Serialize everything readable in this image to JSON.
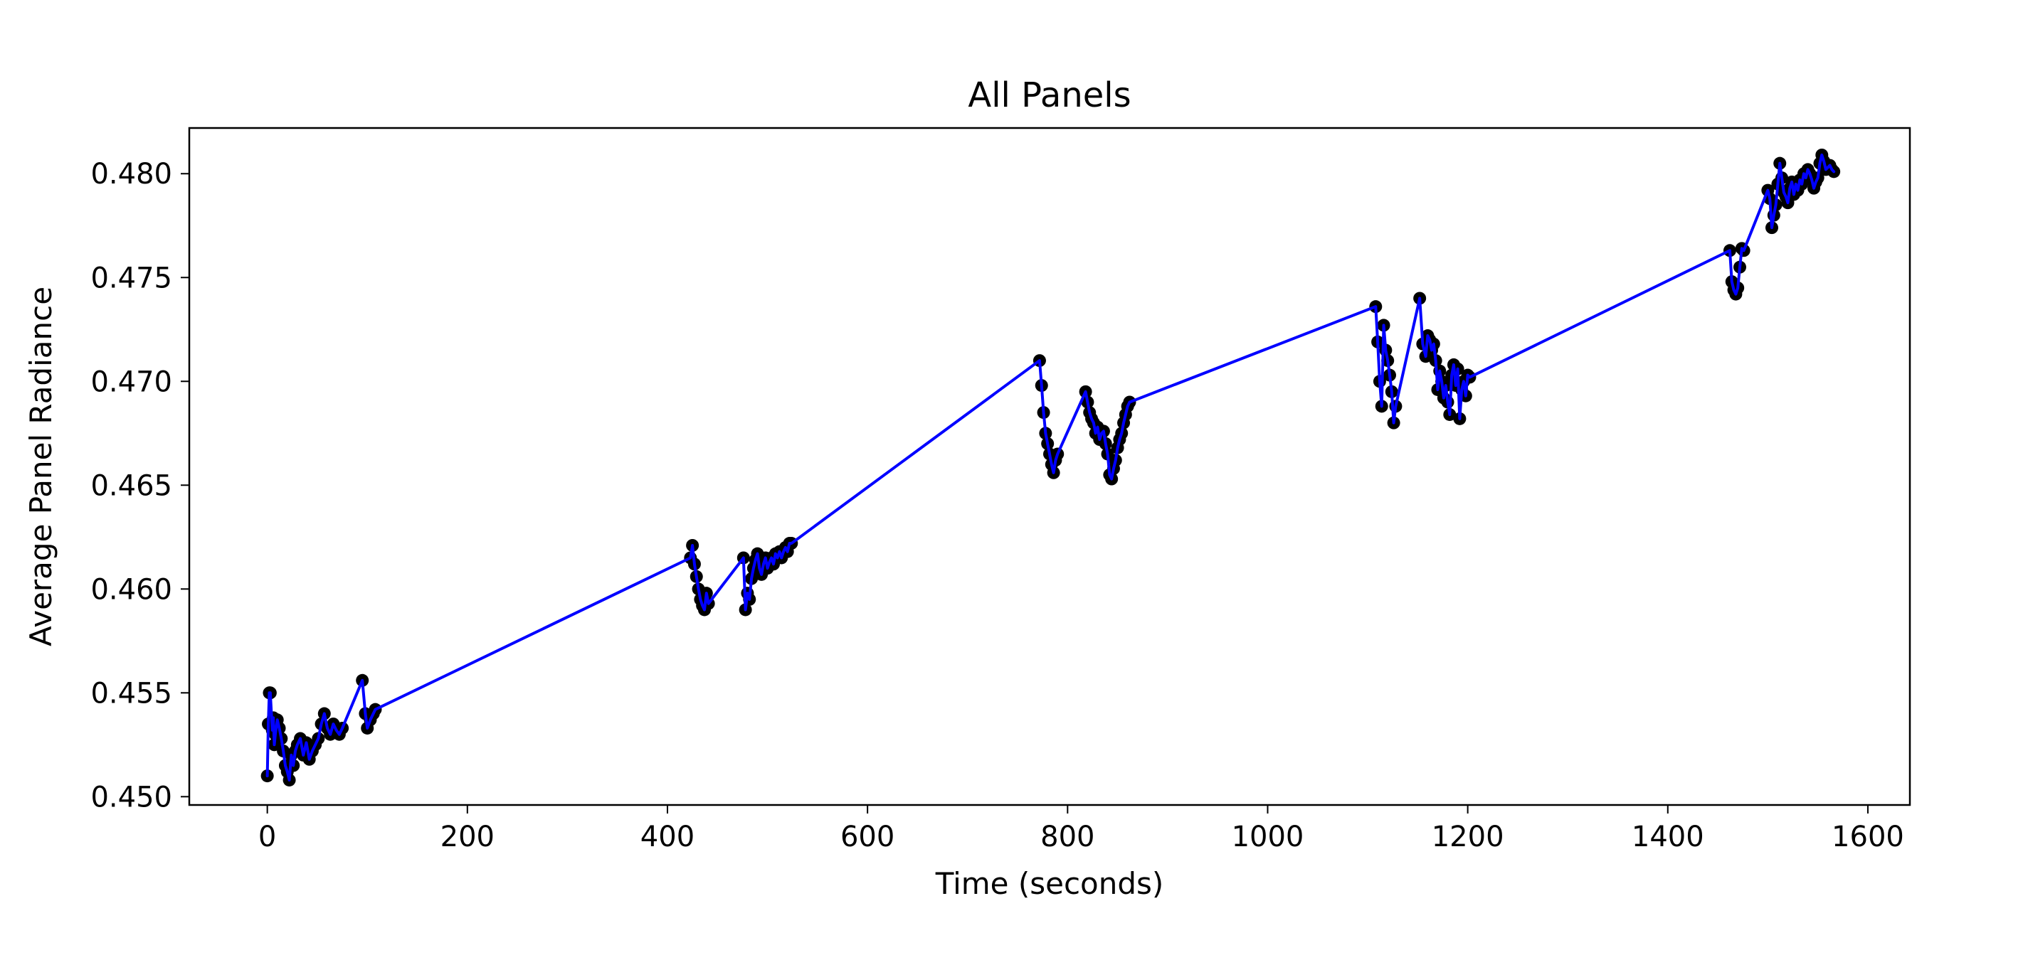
{
  "chart_data": {
    "type": "line",
    "title": "All Panels",
    "xlabel": "Time (seconds)",
    "ylabel": "Average Panel Radiance",
    "xlim": [
      -78,
      1642
    ],
    "ylim": [
      0.4496,
      0.4822
    ],
    "xticks": [
      0,
      200,
      400,
      600,
      800,
      1000,
      1200,
      1400,
      1600
    ],
    "xtick_labels": [
      "0",
      "200",
      "400",
      "600",
      "800",
      "1000",
      "1200",
      "1400",
      "1600"
    ],
    "yticks": [
      0.45,
      0.455,
      0.46,
      0.465,
      0.47,
      0.475,
      0.48
    ],
    "ytick_labels": [
      "0.450",
      "0.455",
      "0.460",
      "0.465",
      "0.470",
      "0.475",
      "0.480"
    ],
    "grid": false,
    "line_color": "#0000ff",
    "marker_color": "#000000",
    "series": [
      {
        "x": [
          0,
          1,
          2,
          3,
          5,
          6,
          7,
          8,
          10,
          12,
          14,
          16,
          18,
          20,
          22,
          24,
          26,
          28,
          30,
          33,
          36,
          39,
          42,
          45,
          48,
          51,
          54,
          57,
          60,
          63,
          66,
          69,
          72,
          75,
          95,
          98,
          100,
          103,
          106,
          108,
          423,
          425,
          427,
          429,
          431,
          433,
          435,
          437,
          439,
          441,
          476,
          478,
          480,
          482,
          484,
          486,
          488,
          490,
          492,
          494,
          496,
          498,
          500,
          502,
          504,
          506,
          508,
          510,
          512,
          514,
          516,
          518,
          520,
          522,
          524,
          772,
          774,
          776,
          778,
          780,
          782,
          784,
          786,
          788,
          790,
          818,
          820,
          822,
          824,
          826,
          828,
          830,
          832,
          834,
          836,
          838,
          840,
          842,
          844,
          846,
          848,
          850,
          852,
          854,
          856,
          858,
          860,
          862,
          1108,
          1110,
          1112,
          1114,
          1116,
          1118,
          1120,
          1122,
          1124,
          1126,
          1128,
          1152,
          1155,
          1158,
          1160,
          1162,
          1164,
          1166,
          1168,
          1170,
          1172,
          1174,
          1176,
          1178,
          1180,
          1182,
          1184,
          1186,
          1188,
          1190,
          1192,
          1194,
          1196,
          1198,
          1200,
          1202,
          1462,
          1464,
          1466,
          1468,
          1470,
          1472,
          1474,
          1476,
          1500,
          1502,
          1504,
          1506,
          1508,
          1510,
          1512,
          1514,
          1516,
          1518,
          1520,
          1522,
          1524,
          1526,
          1528,
          1530,
          1532,
          1534,
          1536,
          1538,
          1540,
          1542,
          1544,
          1546,
          1548,
          1550,
          1552,
          1554,
          1556,
          1558,
          1560,
          1562,
          1564,
          1566
        ],
        "y": [
          0.451,
          0.4535,
          0.455,
          0.455,
          0.4532,
          0.4538,
          0.4525,
          0.453,
          0.4537,
          0.4533,
          0.4528,
          0.4522,
          0.4515,
          0.4512,
          0.4508,
          0.452,
          0.4515,
          0.4522,
          0.4525,
          0.4528,
          0.452,
          0.4526,
          0.4518,
          0.4522,
          0.4525,
          0.4528,
          0.4535,
          0.454,
          0.4533,
          0.453,
          0.4535,
          0.4532,
          0.453,
          0.4533,
          0.4556,
          0.454,
          0.4533,
          0.4537,
          0.454,
          0.4542,
          0.4615,
          0.4621,
          0.4612,
          0.4606,
          0.46,
          0.4595,
          0.4592,
          0.459,
          0.4598,
          0.4593,
          0.4615,
          0.459,
          0.4598,
          0.4595,
          0.4605,
          0.461,
          0.4614,
          0.4617,
          0.461,
          0.4607,
          0.4612,
          0.4615,
          0.461,
          0.4613,
          0.4615,
          0.4612,
          0.4617,
          0.4615,
          0.4618,
          0.4615,
          0.4618,
          0.462,
          0.4618,
          0.4622,
          0.4622,
          0.471,
          0.4698,
          0.4685,
          0.4675,
          0.467,
          0.4665,
          0.466,
          0.4656,
          0.4662,
          0.4665,
          0.4695,
          0.469,
          0.4685,
          0.4682,
          0.468,
          0.4675,
          0.4678,
          0.4672,
          0.4675,
          0.4676,
          0.467,
          0.4665,
          0.4655,
          0.4653,
          0.4658,
          0.4662,
          0.4668,
          0.4672,
          0.4675,
          0.468,
          0.4684,
          0.4688,
          0.469,
          0.4736,
          0.4719,
          0.47,
          0.4688,
          0.4727,
          0.4715,
          0.471,
          0.4703,
          0.4695,
          0.468,
          0.4688,
          0.474,
          0.4718,
          0.4712,
          0.4722,
          0.472,
          0.4715,
          0.4718,
          0.471,
          0.4696,
          0.4705,
          0.47,
          0.4692,
          0.4698,
          0.469,
          0.4684,
          0.4703,
          0.4708,
          0.4698,
          0.4706,
          0.4682,
          0.4696,
          0.47,
          0.4693,
          0.4703,
          0.4702,
          0.4763,
          0.4748,
          0.4744,
          0.4742,
          0.4745,
          0.4755,
          0.4764,
          0.4763,
          0.4792,
          0.4788,
          0.4774,
          0.478,
          0.4785,
          0.4795,
          0.4805,
          0.4798,
          0.4791,
          0.4789,
          0.4786,
          0.4793,
          0.4796,
          0.479,
          0.4795,
          0.4792,
          0.4797,
          0.4795,
          0.48,
          0.4798,
          0.4802,
          0.48,
          0.4797,
          0.4793,
          0.4796,
          0.4798,
          0.4805,
          0.4809,
          0.4806,
          0.4802,
          0.4803,
          0.4804,
          0.4802,
          0.4801
        ]
      }
    ]
  }
}
